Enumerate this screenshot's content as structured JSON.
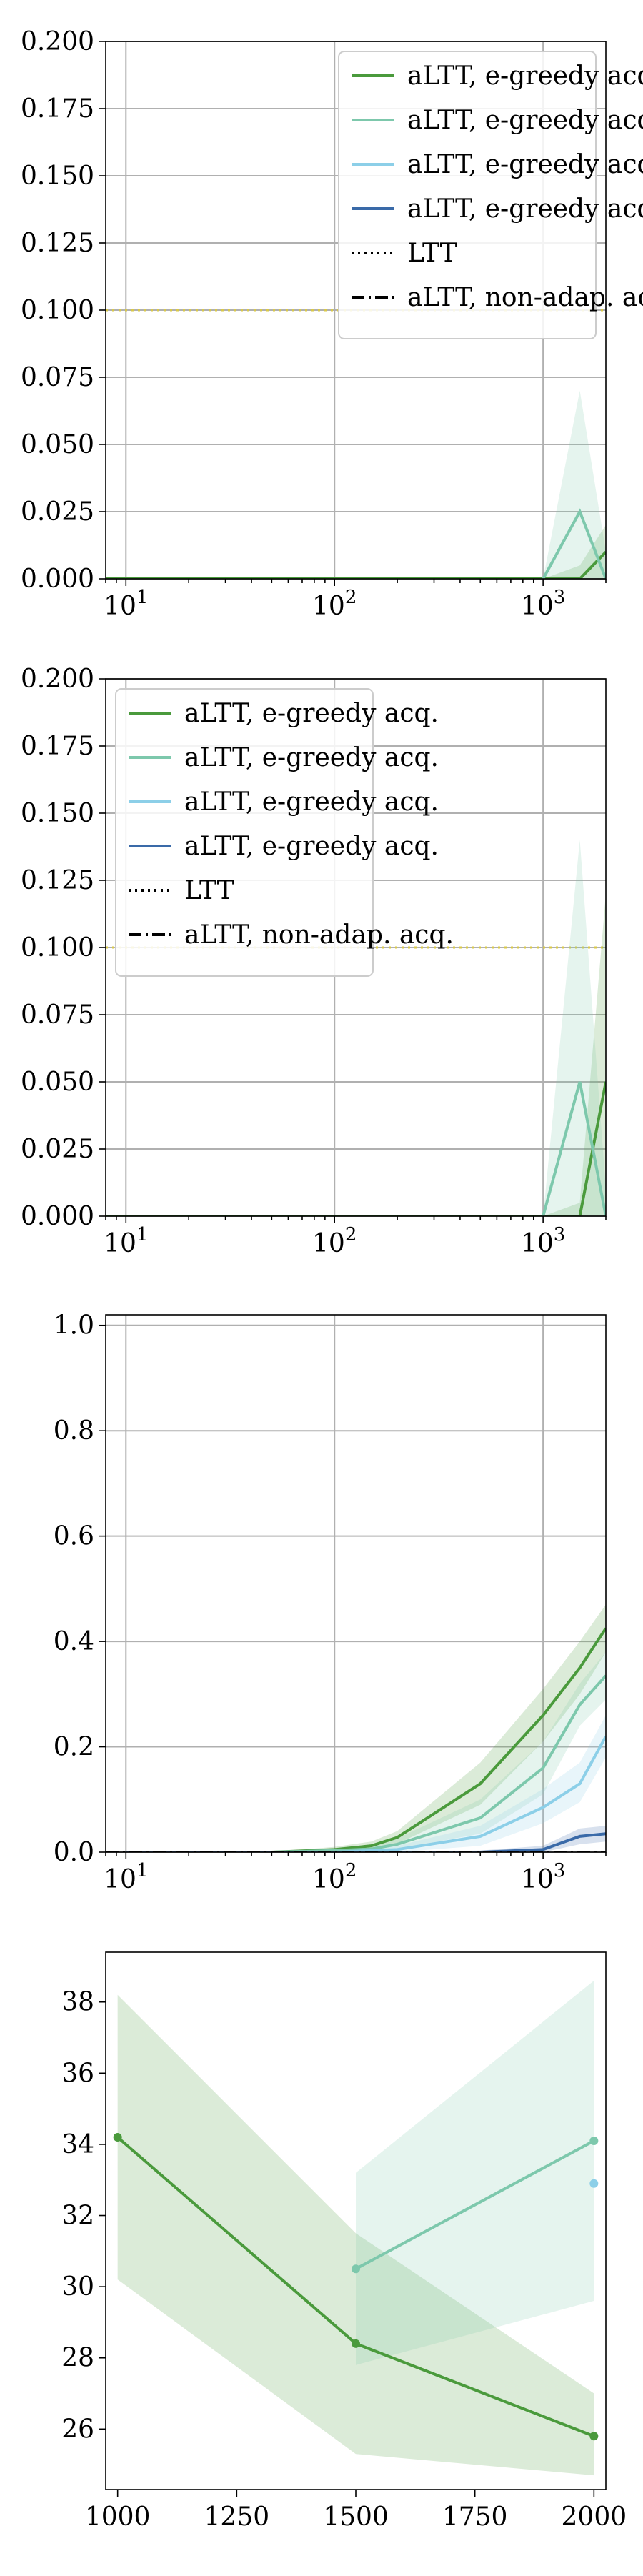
{
  "colors": {
    "green": "#4a9a3c",
    "teal": "#7dc8ac",
    "light_blue": "#8ccfe8",
    "blue": "#3a6aa8",
    "ltt_yellow": "#d8c84a",
    "black": "#000000"
  },
  "chart_data": [
    {
      "type": "line",
      "xscale": "log",
      "xlim": [
        8,
        2000
      ],
      "ylim": [
        0,
        0.2
      ],
      "grid": true,
      "xticks": [
        10,
        100,
        1000
      ],
      "xtick_labels": [
        {
          "base": "10",
          "exp": "1"
        },
        {
          "base": "10",
          "exp": "2"
        },
        {
          "base": "10",
          "exp": "3"
        }
      ],
      "yticks": [
        0,
        0.025,
        0.05,
        0.075,
        0.1,
        0.125,
        0.15,
        0.175,
        0.2
      ],
      "ytick_labels": [
        "0.000",
        "0.025",
        "0.050",
        "0.075",
        "0.100",
        "0.125",
        "0.150",
        "0.175",
        "0.200"
      ],
      "legend_position": "top-right",
      "legend": [
        {
          "label": "aLTT, e-greedy acq.",
          "color": "#4a9a3c",
          "style": "solid"
        },
        {
          "label": "aLTT, e-greedy acq.",
          "color": "#7dc8ac",
          "style": "solid"
        },
        {
          "label": "aLTT, e-greedy acq.",
          "color": "#8ccfe8",
          "style": "solid"
        },
        {
          "label": "aLTT, e-greedy acq.",
          "color": "#3a6aa8",
          "style": "solid"
        },
        {
          "label": "LTT",
          "color": "#000000",
          "style": "dotted"
        },
        {
          "label": "aLTT, non-adap. acq.",
          "color": "#000000",
          "style": "dashdot"
        }
      ],
      "hlines": [
        {
          "y": 0.1,
          "color": "#d8c84a",
          "style": "dotted"
        }
      ],
      "series": [
        {
          "color": "#4a9a3c",
          "x": [
            8,
            20,
            50,
            100,
            200,
            500,
            1000,
            1500,
            2000
          ],
          "y": [
            0,
            0,
            0,
            0,
            0,
            0,
            0,
            0,
            0.01
          ],
          "band_upper": [
            0,
            0,
            0,
            0,
            0,
            0,
            0,
            0.005,
            0.02
          ],
          "band_lower": [
            0,
            0,
            0,
            0,
            0,
            0,
            0,
            0,
            0
          ]
        },
        {
          "color": "#7dc8ac",
          "x": [
            1000,
            1500,
            2000
          ],
          "y": [
            0,
            0.025,
            0
          ],
          "band_upper": [
            0,
            0.07,
            0.01
          ],
          "band_lower": [
            0,
            0,
            0
          ]
        }
      ]
    },
    {
      "type": "line",
      "xscale": "log",
      "xlim": [
        8,
        2000
      ],
      "ylim": [
        0,
        0.2
      ],
      "grid": true,
      "xticks": [
        10,
        100,
        1000
      ],
      "xtick_labels": [
        {
          "base": "10",
          "exp": "1"
        },
        {
          "base": "10",
          "exp": "2"
        },
        {
          "base": "10",
          "exp": "3"
        }
      ],
      "yticks": [
        0,
        0.025,
        0.05,
        0.075,
        0.1,
        0.125,
        0.15,
        0.175,
        0.2
      ],
      "ytick_labels": [
        "0.000",
        "0.025",
        "0.050",
        "0.075",
        "0.100",
        "0.125",
        "0.150",
        "0.175",
        "0.200"
      ],
      "legend_position": "top-left",
      "legend": [
        {
          "label": "aLTT, e-greedy acq.",
          "color": "#4a9a3c",
          "style": "solid"
        },
        {
          "label": "aLTT, e-greedy acq.",
          "color": "#7dc8ac",
          "style": "solid"
        },
        {
          "label": "aLTT, e-greedy acq.",
          "color": "#8ccfe8",
          "style": "solid"
        },
        {
          "label": "aLTT, e-greedy acq.",
          "color": "#3a6aa8",
          "style": "solid"
        },
        {
          "label": "LTT",
          "color": "#000000",
          "style": "dotted"
        },
        {
          "label": "aLTT, non-adap. acq.",
          "color": "#000000",
          "style": "dashdot"
        }
      ],
      "hlines": [
        {
          "y": 0.1,
          "color": "#d8c84a",
          "style": "dotted"
        }
      ],
      "series": [
        {
          "color": "#4a9a3c",
          "x": [
            8,
            20,
            50,
            100,
            200,
            500,
            1000,
            1500,
            2000
          ],
          "y": [
            0,
            0,
            0,
            0,
            0,
            0,
            0,
            0,
            0.05
          ],
          "band_upper": [
            0,
            0,
            0,
            0,
            0,
            0,
            0,
            0.005,
            0.12
          ],
          "band_lower": [
            0,
            0,
            0,
            0,
            0,
            0,
            0,
            0,
            0
          ]
        },
        {
          "color": "#7dc8ac",
          "x": [
            1000,
            1500,
            2000
          ],
          "y": [
            0,
            0.05,
            0
          ],
          "band_upper": [
            0,
            0.14,
            0.01
          ],
          "band_lower": [
            0,
            0,
            0
          ]
        }
      ]
    },
    {
      "type": "line",
      "xscale": "log",
      "xlim": [
        8,
        2000
      ],
      "ylim": [
        0,
        1.02
      ],
      "grid": true,
      "xticks": [
        10,
        100,
        1000
      ],
      "xtick_labels": [
        {
          "base": "10",
          "exp": "1"
        },
        {
          "base": "10",
          "exp": "2"
        },
        {
          "base": "10",
          "exp": "3"
        }
      ],
      "yticks": [
        0,
        0.2,
        0.4,
        0.6,
        0.8,
        1.0
      ],
      "ytick_labels": [
        "0.0",
        "0.2",
        "0.4",
        "0.6",
        "0.8",
        "1.0"
      ],
      "series": [
        {
          "color": "#4a9a3c",
          "x": [
            10,
            20,
            50,
            100,
            150,
            200,
            500,
            1000,
            1500,
            2000
          ],
          "y": [
            0,
            0,
            0,
            0.005,
            0.012,
            0.028,
            0.13,
            0.26,
            0.35,
            0.425
          ],
          "band_upper": [
            0,
            0,
            0,
            0.01,
            0.02,
            0.04,
            0.17,
            0.31,
            0.4,
            0.47
          ],
          "band_lower": [
            0,
            0,
            0,
            0,
            0.005,
            0.016,
            0.09,
            0.21,
            0.3,
            0.38
          ]
        },
        {
          "color": "#7dc8ac",
          "x": [
            10,
            20,
            50,
            100,
            150,
            200,
            500,
            1000,
            1500,
            2000
          ],
          "y": [
            0,
            0,
            0,
            0.003,
            0.006,
            0.015,
            0.065,
            0.16,
            0.28,
            0.335
          ],
          "band_upper": [
            0,
            0,
            0,
            0.006,
            0.012,
            0.026,
            0.1,
            0.21,
            0.32,
            0.38
          ],
          "band_lower": [
            0,
            0,
            0,
            0,
            0.002,
            0.006,
            0.035,
            0.11,
            0.24,
            0.29
          ]
        },
        {
          "color": "#8ccfe8",
          "x": [
            10,
            50,
            100,
            200,
            500,
            1000,
            1500,
            2000
          ],
          "y": [
            0,
            0,
            0,
            0.005,
            0.03,
            0.085,
            0.13,
            0.22
          ],
          "band_upper": [
            0,
            0,
            0.002,
            0.012,
            0.05,
            0.12,
            0.17,
            0.26
          ],
          "band_lower": [
            0,
            0,
            0,
            0,
            0.012,
            0.055,
            0.095,
            0.18
          ]
        },
        {
          "color": "#3a6aa8",
          "x": [
            10,
            100,
            200,
            500,
            1000,
            1500,
            2000
          ],
          "y": [
            0,
            0,
            0,
            0,
            0.005,
            0.03,
            0.035
          ],
          "band_upper": [
            0,
            0,
            0,
            0.003,
            0.012,
            0.045,
            0.05
          ],
          "band_lower": [
            0,
            0,
            0,
            0,
            0,
            0.015,
            0.02
          ]
        },
        {
          "color": "#000000",
          "style": "dashdot",
          "x": [
            8,
            2000
          ],
          "y": [
            0,
            0
          ]
        }
      ]
    },
    {
      "type": "line",
      "xscale": "linear",
      "xlim": [
        975,
        2025
      ],
      "ylim": [
        24.3,
        39.4
      ],
      "grid": false,
      "xticks": [
        1000,
        1250,
        1500,
        1750,
        2000
      ],
      "xtick_labels": [
        "1000",
        "1250",
        "1500",
        "1750",
        "2000"
      ],
      "yticks": [
        26,
        28,
        30,
        32,
        34,
        36,
        38
      ],
      "ytick_labels": [
        "26",
        "28",
        "30",
        "32",
        "34",
        "36",
        "38"
      ],
      "series": [
        {
          "color": "#4a9a3c",
          "x": [
            1000,
            1500,
            2000
          ],
          "y": [
            34.2,
            28.4,
            25.8
          ],
          "band_upper": [
            38.2,
            31.5,
            27.0
          ],
          "band_lower": [
            30.2,
            25.3,
            24.7
          ]
        },
        {
          "color": "#7dc8ac",
          "x": [
            1500,
            2000
          ],
          "y": [
            30.5,
            34.1
          ],
          "band_upper": [
            33.2,
            38.6
          ],
          "band_lower": [
            27.8,
            29.6
          ]
        },
        {
          "color": "#8ccfe8",
          "x": [
            2000
          ],
          "y": [
            32.9
          ]
        }
      ]
    }
  ]
}
